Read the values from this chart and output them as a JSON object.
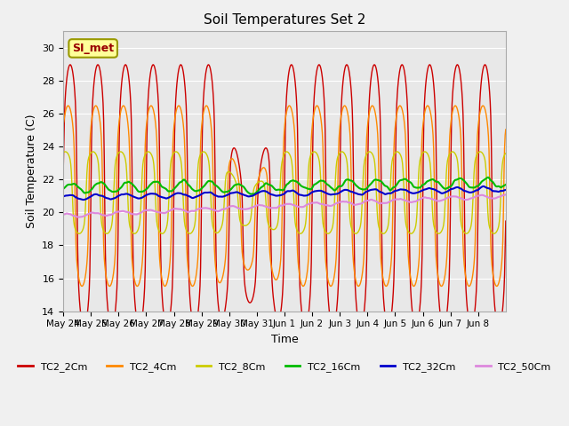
{
  "title": "Soil Temperatures Set 2",
  "xlabel": "Time",
  "ylabel": "Soil Temperature (C)",
  "ylim": [
    14,
    31
  ],
  "yticks": [
    14,
    16,
    18,
    20,
    22,
    24,
    26,
    28,
    30
  ],
  "plot_bg_color": "#e8e8e8",
  "fig_bg_color": "#f0f0f0",
  "annotation_text": "SI_met",
  "annotation_facecolor": "#ffff99",
  "annotation_edgecolor": "#999900",
  "annotation_textcolor": "#990000",
  "series": [
    {
      "label": "TC2_2Cm",
      "color": "#cc0000",
      "lw": 1.0
    },
    {
      "label": "TC2_4Cm",
      "color": "#ff8800",
      "lw": 1.0
    },
    {
      "label": "TC2_8Cm",
      "color": "#cccc00",
      "lw": 1.0
    },
    {
      "label": "TC2_16Cm",
      "color": "#00bb00",
      "lw": 1.5
    },
    {
      "label": "TC2_32Cm",
      "color": "#0000cc",
      "lw": 1.5
    },
    {
      "label": "TC2_50Cm",
      "color": "#dd88dd",
      "lw": 1.5
    }
  ],
  "xtick_labels": [
    "May 24",
    "May 25",
    "May 26",
    "May 27",
    "May 28",
    "May 29",
    "May 30",
    "May 31",
    "Jun 1",
    "Jun 2",
    "Jun 3",
    "Jun 4",
    "Jun 5",
    "Jun 6",
    "Jun 7",
    "Jun 8"
  ],
  "n_days": 16,
  "pts_per_day": 48,
  "figsize": [
    6.4,
    4.8
  ],
  "dpi": 100
}
